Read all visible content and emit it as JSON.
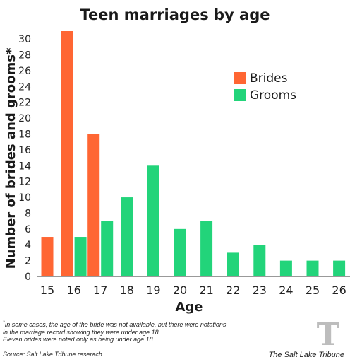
{
  "chart_data": {
    "type": "bar",
    "title": "Teen marriages by age",
    "xlabel": "Age",
    "ylabel": "Number of brides and grooms*",
    "categories": [
      "15",
      "16",
      "17",
      "18",
      "19",
      "20",
      "21",
      "22",
      "23",
      "24",
      "25",
      "26"
    ],
    "series": [
      {
        "name": "Brides",
        "color": "#FF6633",
        "values": [
          5,
          31,
          18,
          null,
          null,
          null,
          null,
          null,
          null,
          null,
          null,
          null
        ]
      },
      {
        "name": "Grooms",
        "color": "#22D47A",
        "values": [
          null,
          5,
          7,
          10,
          14,
          6,
          7,
          3,
          4,
          2,
          2,
          2
        ]
      }
    ],
    "ylim": [
      0,
      31
    ],
    "yticks": [
      0,
      2,
      4,
      6,
      8,
      10,
      12,
      14,
      16,
      18,
      20,
      22,
      24,
      26,
      28,
      30
    ],
    "grid": false,
    "legend": "top-right"
  },
  "footnote": {
    "marker": "*",
    "lines": [
      "In some cases, the age of the bride was not available, but there were notations",
      "in the marriage record showing they were under age 18.",
      "Eleven brides were noted only as being under age 18."
    ]
  },
  "source": "Source: Salt Lake Tribune reserach",
  "publisher": "The Salt Lake Tribune",
  "logo_letter": "T"
}
